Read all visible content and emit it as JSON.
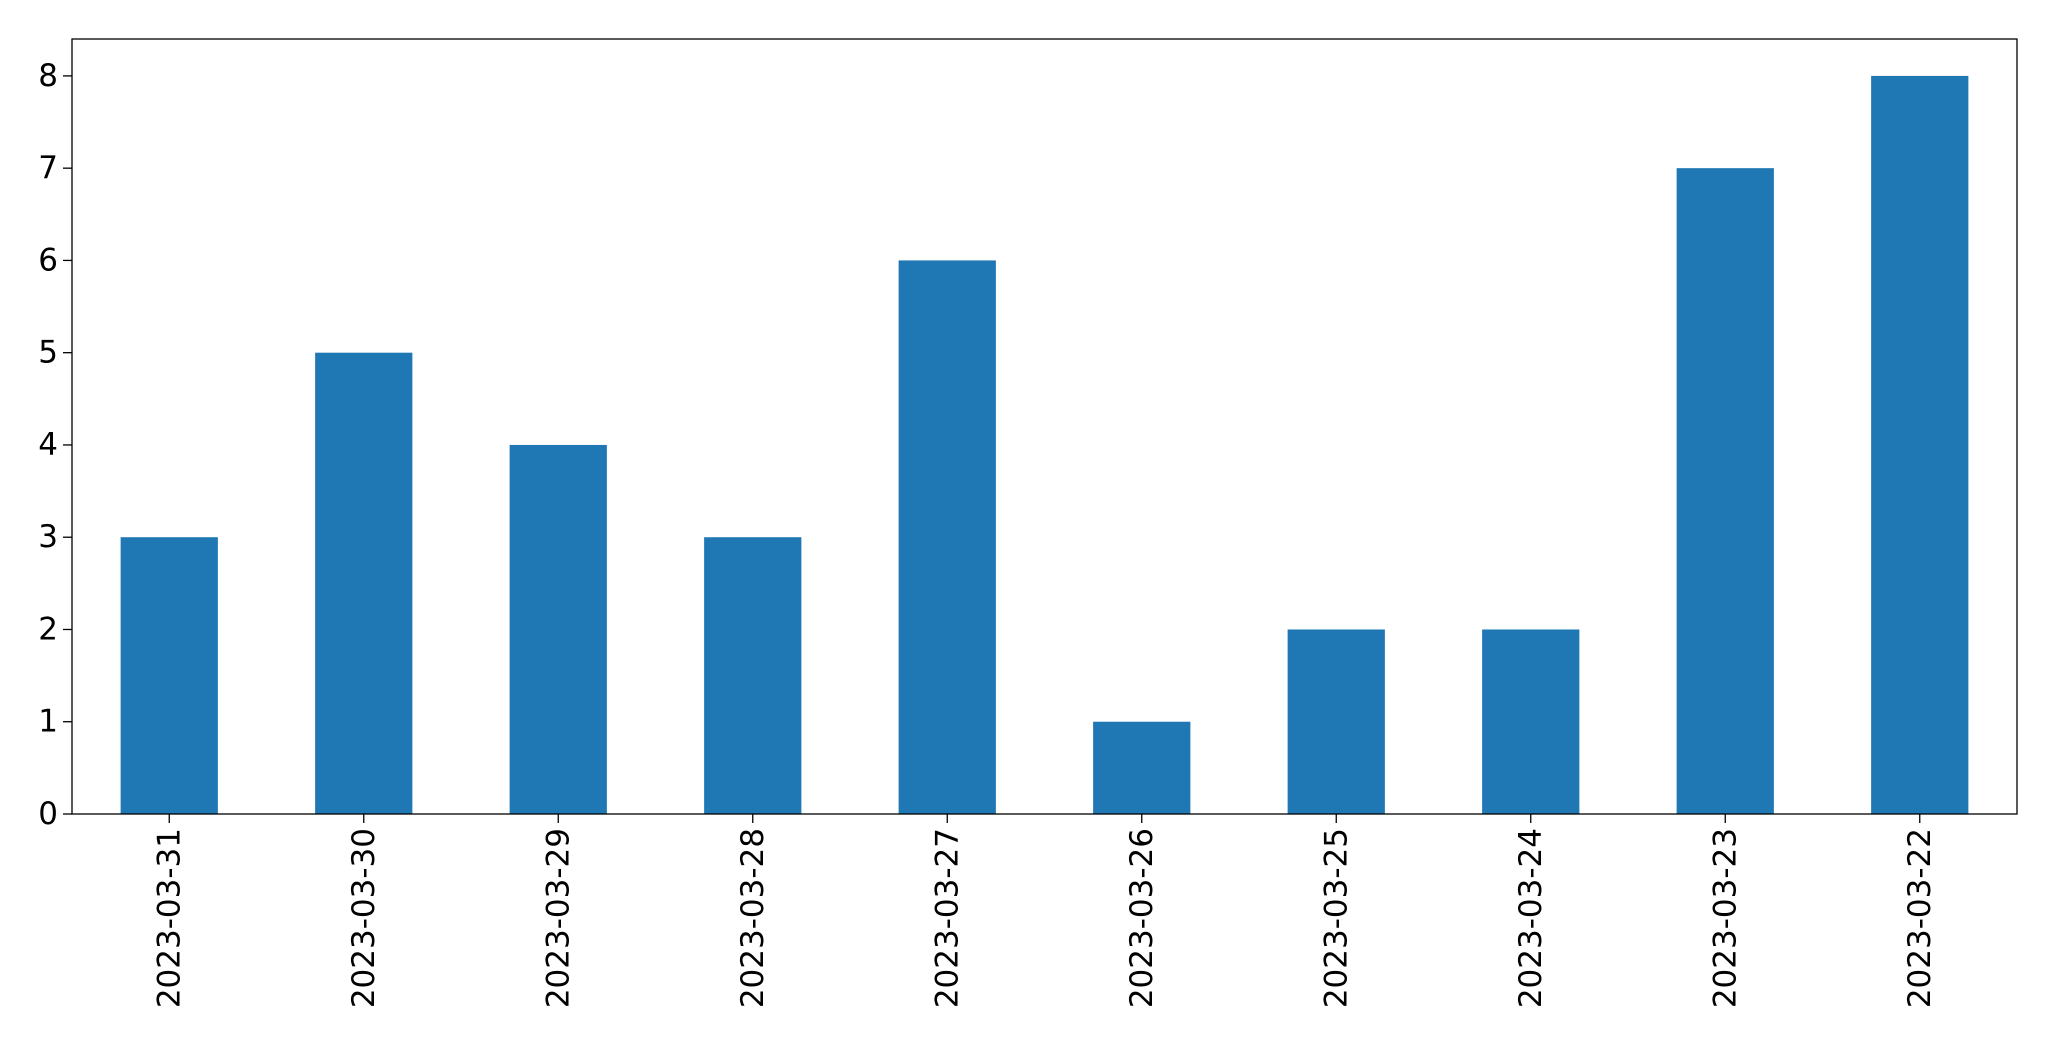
{
  "chart_data": {
    "type": "bar",
    "categories": [
      "2023-03-31",
      "2023-03-30",
      "2023-03-29",
      "2023-03-28",
      "2023-03-27",
      "2023-03-26",
      "2023-03-25",
      "2023-03-24",
      "2023-03-23",
      "2023-03-22"
    ],
    "values": [
      3,
      5,
      4,
      3,
      6,
      1,
      2,
      2,
      7,
      8
    ],
    "color": "#1f77b4",
    "ylim": [
      0,
      8.4
    ],
    "yticks": [
      0,
      1,
      2,
      3,
      4,
      5,
      6,
      7,
      8
    ],
    "grid": false
  }
}
